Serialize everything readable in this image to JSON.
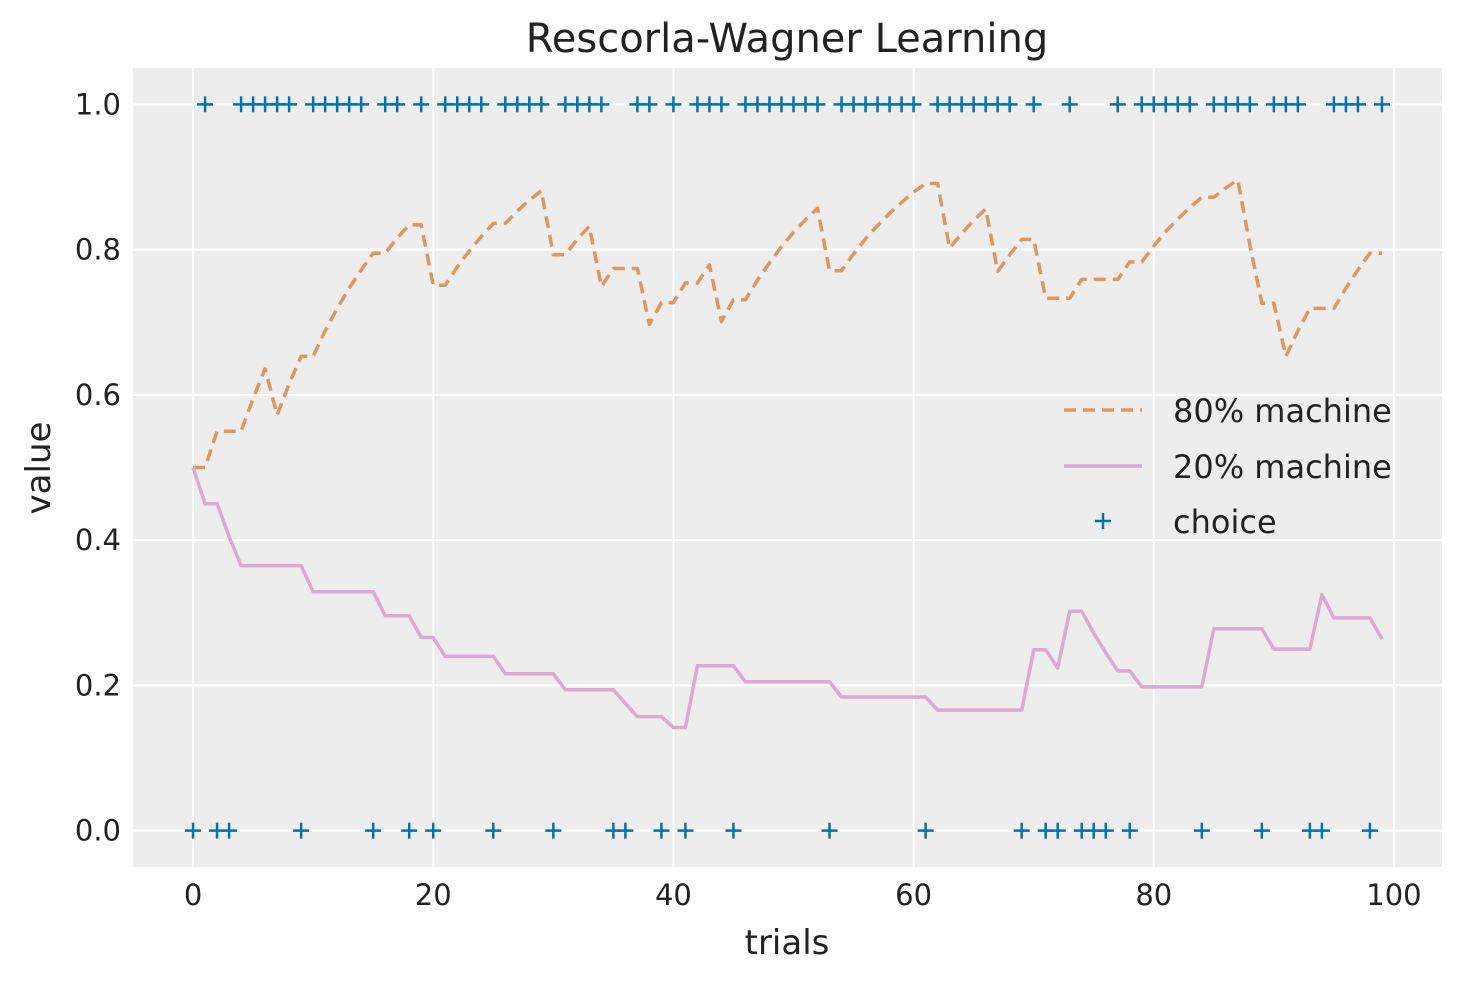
{
  "chart_data": {
    "type": "line",
    "title": "Rescorla-Wagner Learning",
    "xlabel": "trials",
    "ylabel": "value",
    "xlim": [
      -5,
      104
    ],
    "ylim": [
      -0.05,
      1.05
    ],
    "xticks": [
      0,
      20,
      40,
      60,
      80,
      100
    ],
    "yticks": [
      0.0,
      0.2,
      0.4,
      0.6,
      0.8,
      1.0
    ],
    "grid": true,
    "legend_position": "center-right",
    "colors": {
      "background": "#EDEDED",
      "grid": "#FFFFFF",
      "series_80": "#E0975E",
      "series_20": "#DDA8D3",
      "choice": "#0571B0"
    },
    "series": [
      {
        "name": "80% machine",
        "style": "dashed",
        "x": [
          0,
          1,
          2,
          3,
          4,
          5,
          6,
          7,
          8,
          9,
          10,
          11,
          12,
          13,
          14,
          15,
          16,
          17,
          18,
          19,
          20,
          21,
          22,
          23,
          24,
          25,
          26,
          27,
          28,
          29,
          30,
          31,
          32,
          33,
          34,
          35,
          36,
          37,
          38,
          39,
          40,
          41,
          42,
          43,
          44,
          45,
          46,
          47,
          48,
          49,
          50,
          51,
          52,
          53,
          54,
          55,
          56,
          57,
          58,
          59,
          60,
          61,
          62,
          63,
          64,
          65,
          66,
          67,
          68,
          69,
          70,
          71,
          72,
          73,
          74,
          75,
          76,
          77,
          78,
          79,
          80,
          81,
          82,
          83,
          84,
          85,
          86,
          87,
          88,
          89,
          90,
          91,
          92,
          93,
          94,
          95,
          96,
          97,
          98,
          99
        ],
        "values": [
          0.5,
          0.5,
          0.55,
          0.55,
          0.55,
          0.595,
          0.636,
          0.572,
          0.615,
          0.653,
          0.653,
          0.688,
          0.719,
          0.747,
          0.772,
          0.795,
          0.795,
          0.816,
          0.834,
          0.834,
          0.751,
          0.751,
          0.776,
          0.798,
          0.818,
          0.836,
          0.836,
          0.853,
          0.868,
          0.881,
          0.793,
          0.793,
          0.814,
          0.832,
          0.749,
          0.774,
          0.774,
          0.774,
          0.697,
          0.727,
          0.727,
          0.754,
          0.754,
          0.779,
          0.701,
          0.731,
          0.731,
          0.758,
          0.782,
          0.804,
          0.824,
          0.841,
          0.857,
          0.771,
          0.771,
          0.794,
          0.815,
          0.833,
          0.85,
          0.865,
          0.879,
          0.891,
          0.891,
          0.802,
          0.822,
          0.84,
          0.856,
          0.77,
          0.793,
          0.814,
          0.814,
          0.733,
          0.733,
          0.733,
          0.759,
          0.759,
          0.759,
          0.759,
          0.783,
          0.783,
          0.805,
          0.825,
          0.842,
          0.858,
          0.872,
          0.872,
          0.885,
          0.896,
          0.806,
          0.726,
          0.726,
          0.653,
          0.688,
          0.719,
          0.719,
          0.719,
          0.747,
          0.772,
          0.795,
          0.795
        ]
      },
      {
        "name": "20% machine",
        "style": "solid",
        "x": [
          0,
          1,
          2,
          3,
          4,
          5,
          6,
          7,
          8,
          9,
          10,
          11,
          12,
          13,
          14,
          15,
          16,
          17,
          18,
          19,
          20,
          21,
          22,
          23,
          24,
          25,
          26,
          27,
          28,
          29,
          30,
          31,
          32,
          33,
          34,
          35,
          36,
          37,
          38,
          39,
          40,
          41,
          42,
          43,
          44,
          45,
          46,
          47,
          48,
          49,
          50,
          51,
          52,
          53,
          54,
          55,
          56,
          57,
          58,
          59,
          60,
          61,
          62,
          63,
          64,
          65,
          66,
          67,
          68,
          69,
          70,
          71,
          72,
          73,
          74,
          75,
          76,
          77,
          78,
          79,
          80,
          81,
          82,
          83,
          84,
          85,
          86,
          87,
          88,
          89,
          90,
          91,
          92,
          93,
          94,
          95,
          96,
          97,
          98,
          99
        ],
        "values": [
          0.5,
          0.45,
          0.45,
          0.405,
          0.365,
          0.365,
          0.365,
          0.365,
          0.365,
          0.365,
          0.329,
          0.329,
          0.329,
          0.329,
          0.329,
          0.329,
          0.296,
          0.296,
          0.296,
          0.266,
          0.266,
          0.24,
          0.24,
          0.24,
          0.24,
          0.24,
          0.216,
          0.216,
          0.216,
          0.216,
          0.216,
          0.194,
          0.194,
          0.194,
          0.194,
          0.194,
          0.175,
          0.157,
          0.157,
          0.157,
          0.142,
          0.142,
          0.227,
          0.227,
          0.227,
          0.227,
          0.205,
          0.205,
          0.205,
          0.205,
          0.205,
          0.205,
          0.205,
          0.205,
          0.184,
          0.184,
          0.184,
          0.184,
          0.184,
          0.184,
          0.184,
          0.184,
          0.166,
          0.166,
          0.166,
          0.166,
          0.166,
          0.166,
          0.166,
          0.166,
          0.249,
          0.249,
          0.224,
          0.302,
          0.302,
          0.272,
          0.245,
          0.22,
          0.22,
          0.198,
          0.198,
          0.198,
          0.198,
          0.198,
          0.198,
          0.278,
          0.278,
          0.278,
          0.278,
          0.278,
          0.25,
          0.25,
          0.25,
          0.25,
          0.325,
          0.293,
          0.293,
          0.293,
          0.293,
          0.264
        ]
      },
      {
        "name": "choice",
        "style": "markers",
        "x": [
          0,
          1,
          2,
          3,
          4,
          5,
          6,
          7,
          8,
          9,
          10,
          11,
          12,
          13,
          14,
          15,
          16,
          17,
          18,
          19,
          20,
          21,
          22,
          23,
          24,
          25,
          26,
          27,
          28,
          29,
          30,
          31,
          32,
          33,
          34,
          35,
          36,
          37,
          38,
          39,
          40,
          41,
          42,
          43,
          44,
          45,
          46,
          47,
          48,
          49,
          50,
          51,
          52,
          53,
          54,
          55,
          56,
          57,
          58,
          59,
          60,
          61,
          62,
          63,
          64,
          65,
          66,
          67,
          68,
          69,
          70,
          71,
          72,
          73,
          74,
          75,
          76,
          77,
          78,
          79,
          80,
          81,
          82,
          83,
          84,
          85,
          86,
          87,
          88,
          89,
          90,
          91,
          92,
          93,
          94,
          95,
          96,
          97,
          98,
          99
        ],
        "values": [
          0,
          1,
          0,
          0,
          1,
          1,
          1,
          1,
          1,
          0,
          1,
          1,
          1,
          1,
          1,
          0,
          1,
          1,
          0,
          1,
          0,
          1,
          1,
          1,
          1,
          0,
          1,
          1,
          1,
          1,
          0,
          1,
          1,
          1,
          1,
          0,
          0,
          1,
          1,
          0,
          1,
          0,
          1,
          1,
          1,
          0,
          1,
          1,
          1,
          1,
          1,
          1,
          1,
          0,
          1,
          1,
          1,
          1,
          1,
          1,
          1,
          0,
          1,
          1,
          1,
          1,
          1,
          1,
          1,
          0,
          1,
          0,
          0,
          1,
          0,
          0,
          0,
          1,
          0,
          1,
          1,
          1,
          1,
          1,
          0,
          1,
          1,
          1,
          1,
          0,
          1,
          1,
          1,
          0,
          0,
          1,
          1,
          1,
          0,
          1
        ]
      }
    ]
  }
}
